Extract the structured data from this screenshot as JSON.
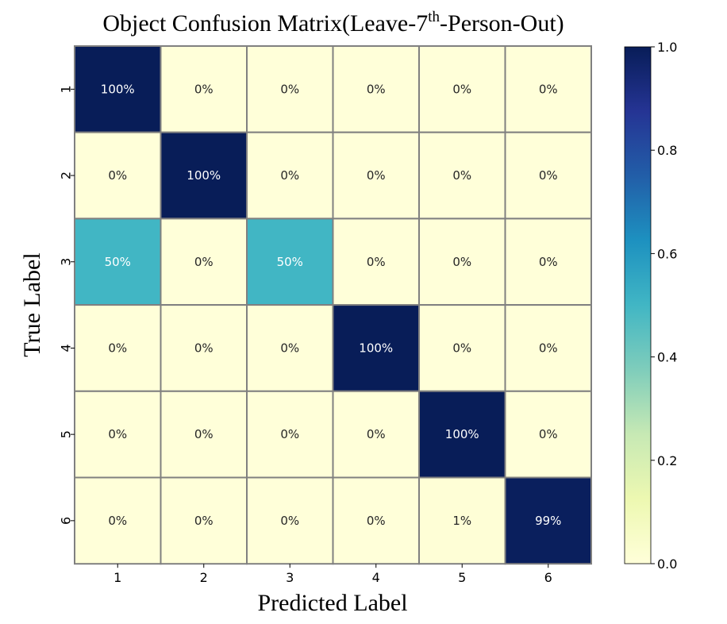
{
  "chart_data": {
    "type": "heatmap",
    "title_prefix": "Object Confusion Matrix(Leave-7",
    "title_sup": "th",
    "title_suffix": "-Person-Out)",
    "xlabel": "Predicted Label",
    "ylabel": "True Label",
    "x_categories": [
      "1",
      "2",
      "3",
      "4",
      "5",
      "6"
    ],
    "y_categories": [
      "1",
      "2",
      "3",
      "4",
      "5",
      "6"
    ],
    "values": [
      [
        1.0,
        0.0,
        0.0,
        0.0,
        0.0,
        0.0
      ],
      [
        0.0,
        1.0,
        0.0,
        0.0,
        0.0,
        0.0
      ],
      [
        0.5,
        0.0,
        0.5,
        0.0,
        0.0,
        0.0
      ],
      [
        0.0,
        0.0,
        0.0,
        1.0,
        0.0,
        0.0
      ],
      [
        0.0,
        0.0,
        0.0,
        0.0,
        1.0,
        0.0
      ],
      [
        0.0,
        0.0,
        0.0,
        0.0,
        0.01,
        0.99
      ]
    ],
    "cell_labels": [
      [
        "100%",
        "0%",
        "0%",
        "0%",
        "0%",
        "0%"
      ],
      [
        "0%",
        "100%",
        "0%",
        "0%",
        "0%",
        "0%"
      ],
      [
        "50%",
        "0%",
        "50%",
        "0%",
        "0%",
        "0%"
      ],
      [
        "0%",
        "0%",
        "0%",
        "100%",
        "0%",
        "0%"
      ],
      [
        "0%",
        "0%",
        "0%",
        "0%",
        "100%",
        "0%"
      ],
      [
        "0%",
        "0%",
        "0%",
        "0%",
        "1%",
        "99%"
      ]
    ],
    "colormap": "YlGnBu",
    "colorbar_range": [
      0.0,
      1.0
    ],
    "colorbar_ticks": [
      0.0,
      0.2,
      0.4,
      0.6,
      0.8,
      1.0
    ],
    "colorbar_tick_labels": [
      "0.0",
      "0.2",
      "0.4",
      "0.6",
      "0.8",
      "1.0"
    ],
    "grid_line_color": "#808080"
  }
}
